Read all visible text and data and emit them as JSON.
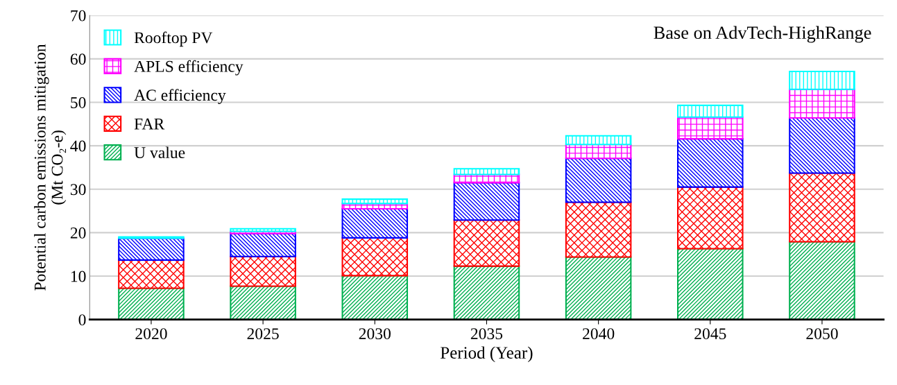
{
  "chart_data": {
    "type": "bar",
    "stacked": true,
    "xlabel": "Period (Year)",
    "ylabel": "Potential carbon emissions mitigation\n(Mt CO₂-e)",
    "annotations": [
      "Base on AdvTech-HighRange"
    ],
    "categories": [
      "2020",
      "2025",
      "2030",
      "2035",
      "2040",
      "2045",
      "2050"
    ],
    "series": [
      {
        "name": "U value",
        "color": "#00b050",
        "values": [
          7.2,
          7.7,
          10.1,
          12.3,
          14.4,
          16.3,
          17.9
        ]
      },
      {
        "name": "FAR",
        "color": "#ff0000",
        "values": [
          6.5,
          6.8,
          8.7,
          10.6,
          12.6,
          14.2,
          15.8
        ]
      },
      {
        "name": "AC efficiency",
        "color": "#0000ff",
        "values": [
          5.0,
          5.3,
          6.7,
          8.6,
          10.1,
          11.1,
          12.7
        ]
      },
      {
        "name": "APLS efficiency",
        "color": "#ff00ff",
        "values": [
          null,
          0.5,
          1.2,
          1.9,
          3.2,
          5.0,
          6.6
        ]
      },
      {
        "name": "Rooftop PV",
        "color": "#00ffff",
        "values": [
          0.3,
          0.6,
          1.0,
          1.3,
          2.0,
          2.7,
          4.1
        ]
      }
    ],
    "ylim": [
      0,
      70
    ],
    "yticks": [
      0,
      10,
      20,
      30,
      40,
      50,
      60,
      70
    ],
    "grid": "y",
    "legend": "top left"
  }
}
